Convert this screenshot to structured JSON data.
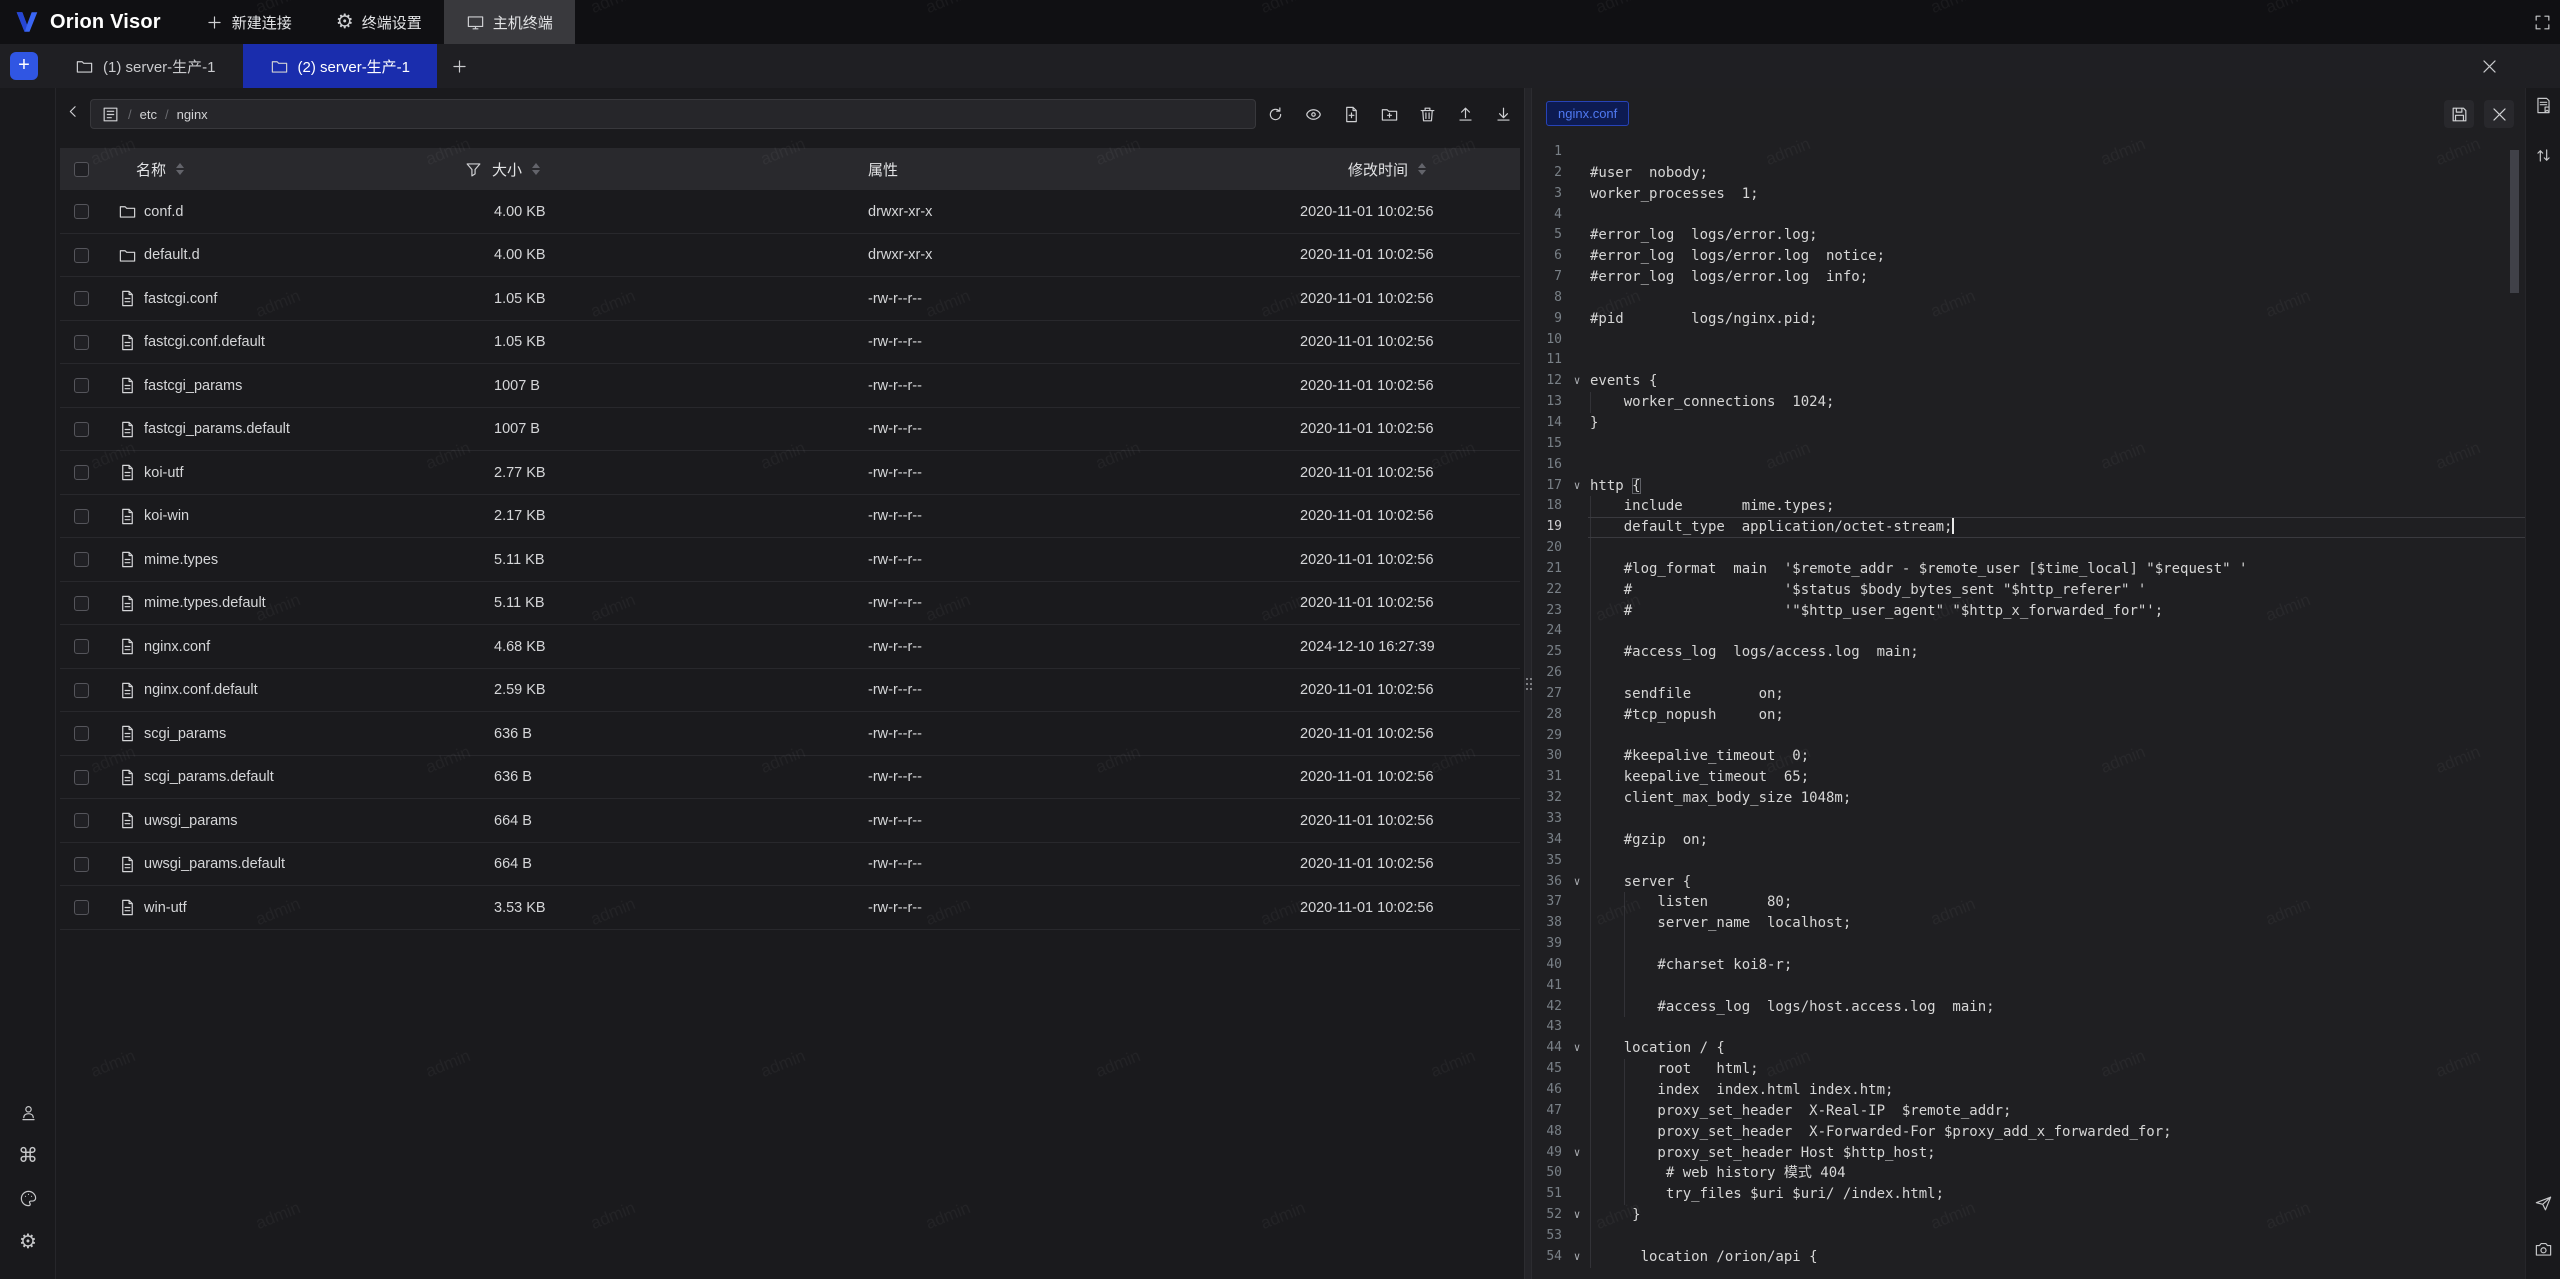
{
  "watermark": "admin",
  "colors": {
    "accent_blue": "#3056e3",
    "active_tab_blue": "#1a2dad",
    "tag_text_blue": "#4f79f2"
  },
  "topbar": {
    "brand": "Orion Visor",
    "menu": [
      {
        "label": "新建连接",
        "icon": "plus"
      },
      {
        "label": "终端设置",
        "icon": "gear"
      },
      {
        "label": "主机终端",
        "icon": "monitor",
        "active": true
      }
    ]
  },
  "tabbar": {
    "tabs": [
      {
        "label": "(1) server-生产-1",
        "active": false
      },
      {
        "label": "(2) server-生产-1",
        "active": true
      }
    ]
  },
  "explorer": {
    "breadcrumb": {
      "segments": [
        "etc",
        "nginx"
      ]
    },
    "toolbar_icons": [
      "refresh",
      "eye",
      "file-plus",
      "folder-plus",
      "trash",
      "upload",
      "download"
    ],
    "columns": {
      "name": "名称",
      "size": "大小",
      "attr": "属性",
      "mtime": "修改时间"
    },
    "rows": [
      {
        "type": "folder",
        "name": "conf.d",
        "size": "4.00 KB",
        "attr": "drwxr-xr-x",
        "mtime": "2020-11-01 10:02:56"
      },
      {
        "type": "folder",
        "name": "default.d",
        "size": "4.00 KB",
        "attr": "drwxr-xr-x",
        "mtime": "2020-11-01 10:02:56"
      },
      {
        "type": "file",
        "name": "fastcgi.conf",
        "size": "1.05 KB",
        "attr": "-rw-r--r--",
        "mtime": "2020-11-01 10:02:56"
      },
      {
        "type": "file",
        "name": "fastcgi.conf.default",
        "size": "1.05 KB",
        "attr": "-rw-r--r--",
        "mtime": "2020-11-01 10:02:56"
      },
      {
        "type": "file",
        "name": "fastcgi_params",
        "size": "1007 B",
        "attr": "-rw-r--r--",
        "mtime": "2020-11-01 10:02:56"
      },
      {
        "type": "file",
        "name": "fastcgi_params.default",
        "size": "1007 B",
        "attr": "-rw-r--r--",
        "mtime": "2020-11-01 10:02:56"
      },
      {
        "type": "file",
        "name": "koi-utf",
        "size": "2.77 KB",
        "attr": "-rw-r--r--",
        "mtime": "2020-11-01 10:02:56"
      },
      {
        "type": "file",
        "name": "koi-win",
        "size": "2.17 KB",
        "attr": "-rw-r--r--",
        "mtime": "2020-11-01 10:02:56"
      },
      {
        "type": "file",
        "name": "mime.types",
        "size": "5.11 KB",
        "attr": "-rw-r--r--",
        "mtime": "2020-11-01 10:02:56"
      },
      {
        "type": "file",
        "name": "mime.types.default",
        "size": "5.11 KB",
        "attr": "-rw-r--r--",
        "mtime": "2020-11-01 10:02:56"
      },
      {
        "type": "file",
        "name": "nginx.conf",
        "size": "4.68 KB",
        "attr": "-rw-r--r--",
        "mtime": "2024-12-10 16:27:39"
      },
      {
        "type": "file",
        "name": "nginx.conf.default",
        "size": "2.59 KB",
        "attr": "-rw-r--r--",
        "mtime": "2020-11-01 10:02:56"
      },
      {
        "type": "file",
        "name": "scgi_params",
        "size": "636 B",
        "attr": "-rw-r--r--",
        "mtime": "2020-11-01 10:02:56"
      },
      {
        "type": "file",
        "name": "scgi_params.default",
        "size": "636 B",
        "attr": "-rw-r--r--",
        "mtime": "2020-11-01 10:02:56"
      },
      {
        "type": "file",
        "name": "uwsgi_params",
        "size": "664 B",
        "attr": "-rw-r--r--",
        "mtime": "2020-11-01 10:02:56"
      },
      {
        "type": "file",
        "name": "uwsgi_params.default",
        "size": "664 B",
        "attr": "-rw-r--r--",
        "mtime": "2020-11-01 10:02:56"
      },
      {
        "type": "file",
        "name": "win-utf",
        "size": "3.53 KB",
        "attr": "-rw-r--r--",
        "mtime": "2020-11-01 10:02:56"
      }
    ]
  },
  "editor": {
    "file_tag": "nginx.conf",
    "active_line": 19,
    "bracket_box_line": 17,
    "fold_lines": [
      12,
      17,
      36,
      44,
      49,
      52,
      54
    ],
    "lines": [
      "",
      "#user  nobody;",
      "worker_processes  1;",
      "",
      "#error_log  logs/error.log;",
      "#error_log  logs/error.log  notice;",
      "#error_log  logs/error.log  info;",
      "",
      "#pid        logs/nginx.pid;",
      "",
      "",
      "events {",
      "    worker_connections  1024;",
      "}",
      "",
      "",
      "http {",
      "    include       mime.types;",
      "    default_type  application/octet-stream;",
      "",
      "    #log_format  main  '$remote_addr - $remote_user [$time_local] \"$request\" '",
      "    #                  '$status $body_bytes_sent \"$http_referer\" '",
      "    #                  '\"$http_user_agent\" \"$http_x_forwarded_for\"';",
      "",
      "    #access_log  logs/access.log  main;",
      "",
      "    sendfile        on;",
      "    #tcp_nopush     on;",
      "",
      "    #keepalive_timeout  0;",
      "    keepalive_timeout  65;",
      "    client_max_body_size 1048m;",
      "",
      "    #gzip  on;",
      "",
      "    server {",
      "        listen       80;",
      "        server_name  localhost;",
      "",
      "        #charset koi8-r;",
      "",
      "        #access_log  logs/host.access.log  main;",
      "",
      "    location / {",
      "        root   html;",
      "        index  index.html index.htm;",
      "        proxy_set_header  X-Real-IP  $remote_addr;",
      "        proxy_set_header  X-Forwarded-For $proxy_add_x_forwarded_for;",
      "        proxy_set_header Host $http_host;",
      "         # web history 模式 404",
      "         try_files $uri $uri/ /index.html;",
      "     }",
      "",
      "      location /orion/api {"
    ]
  },
  "left_rail": {
    "icons": [
      "user",
      "command",
      "palette",
      "gear"
    ]
  },
  "right_rail": {
    "top_icons": [
      "braces",
      "doc-bookmark",
      "sort"
    ],
    "bottom_icons": [
      "paper-plane",
      "camera"
    ]
  }
}
